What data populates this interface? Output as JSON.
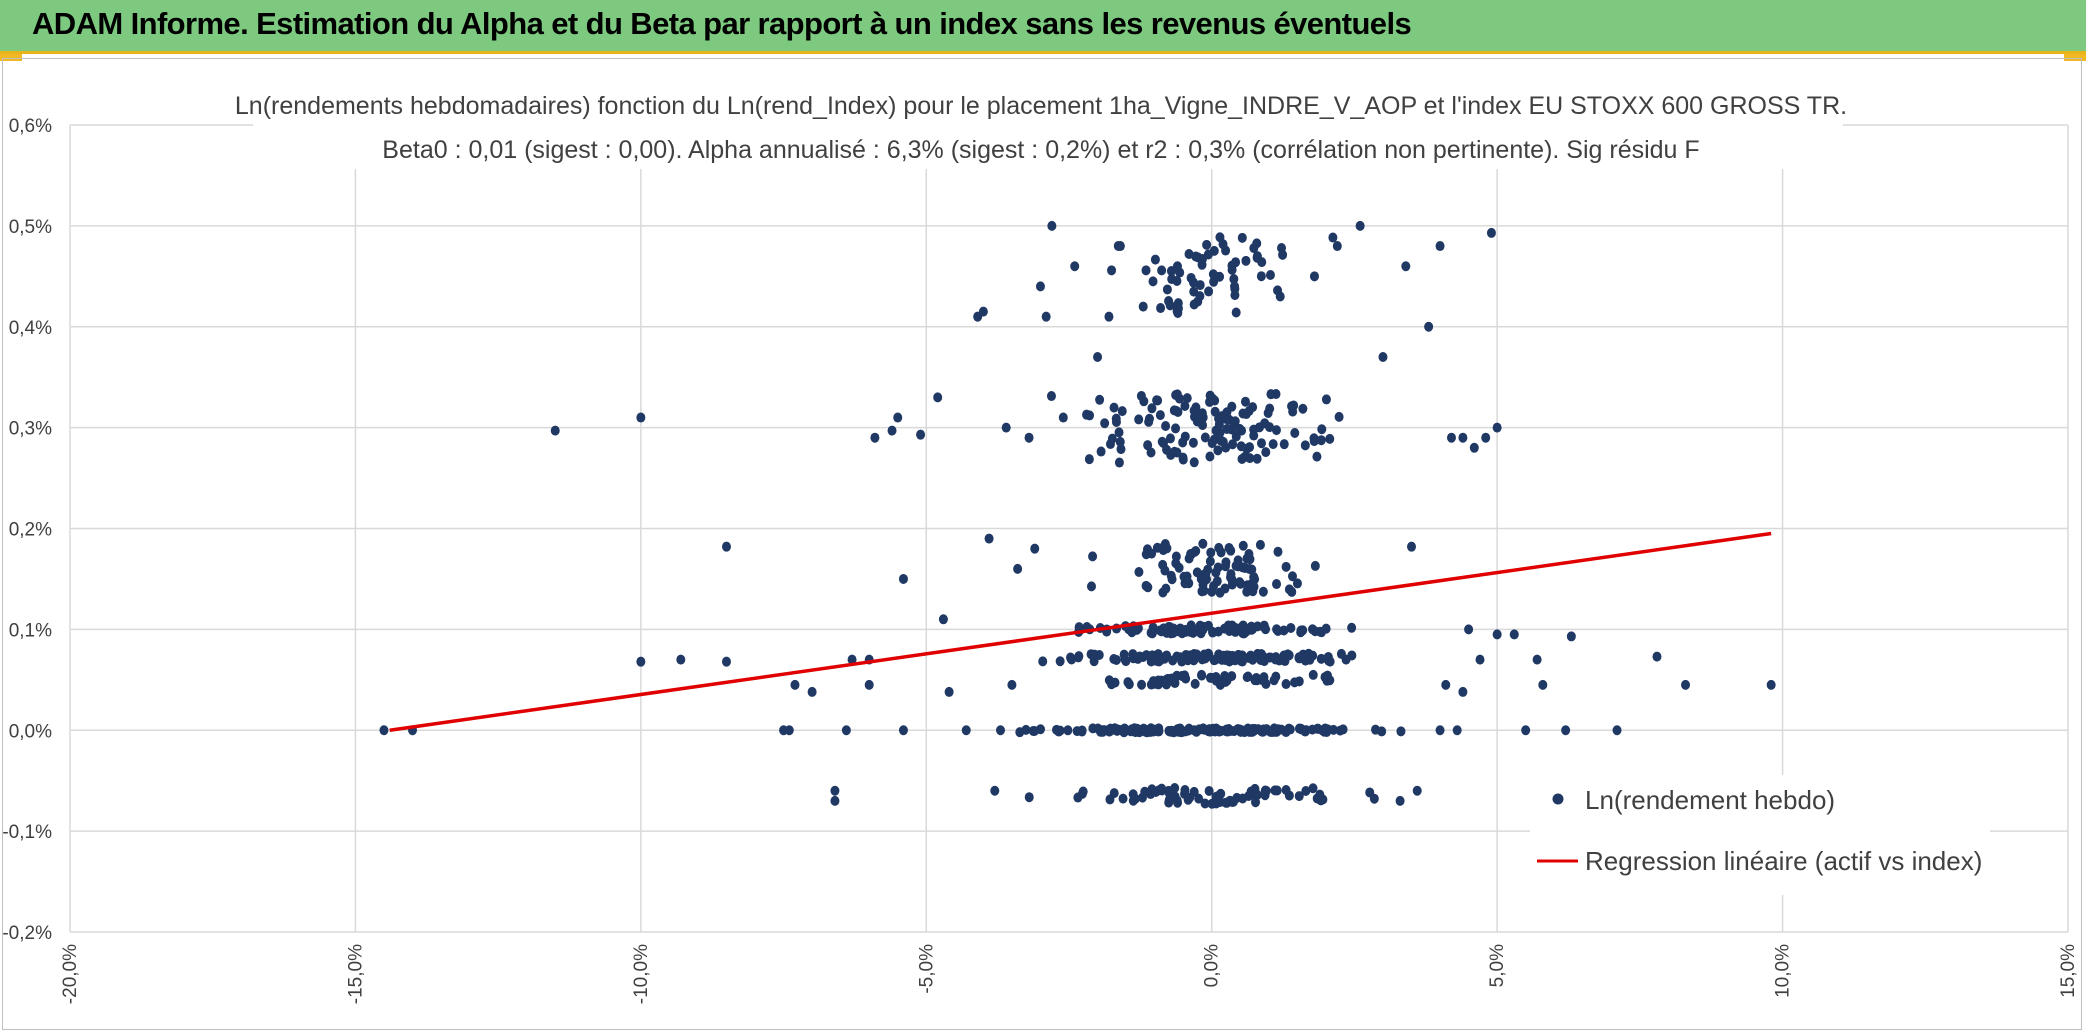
{
  "header": {
    "title": "ADAM Informe. Estimation du Alpha et du Beta par rapport à un index sans les revenus éventuels"
  },
  "colors": {
    "header_bg": "#7dc97f",
    "accent": "#f0b823",
    "points": "#203864",
    "regression": "#e00000",
    "grid": "#d9d9d9"
  },
  "chart_data": {
    "type": "scatter",
    "title_line1": "Ln(rendements hebdomadaires) fonction du Ln(rend_Index) pour le placement 1ha_Vigne_INDRE_V_AOP et l'index EU STOXX 600 GROSS TR.",
    "title_line2": "Beta0 : 0,01 (sigest : 0,00). Alpha annualisé : 6,3% (sigest : 0,2%) et r2 : 0,3% (corrélation non pertinente). Sig résidu F",
    "xlim": [
      -0.2,
      0.15
    ],
    "ylim": [
      -0.002,
      0.006
    ],
    "x_ticks": [
      "-20,0%",
      "-15,0%",
      "-10,0%",
      "-5,0%",
      "0,0%",
      "5,0%",
      "10,0%",
      "15,0%"
    ],
    "y_ticks": [
      "-0,2%",
      "-0,1%",
      "0,0%",
      "0,1%",
      "0,2%",
      "0,3%",
      "0,4%",
      "0,5%",
      "0,6%"
    ],
    "legend_placement": "bottom-right",
    "series": [
      {
        "name": "Ln(rendement hebdo)",
        "kind": "points",
        "color": "#203864",
        "points": [
          [
            -0.145,
            0.0
          ],
          [
            -0.14,
            0.0
          ],
          [
            -0.115,
            0.00297
          ],
          [
            -0.1,
            0.0031
          ],
          [
            -0.1,
            0.00068
          ],
          [
            -0.093,
            0.0007
          ],
          [
            -0.085,
            0.00182
          ],
          [
            -0.085,
            0.00068
          ],
          [
            -0.075,
            0.0
          ],
          [
            -0.074,
            0.0
          ],
          [
            -0.073,
            0.00045
          ],
          [
            -0.07,
            0.00038
          ],
          [
            -0.066,
            -0.0006
          ],
          [
            -0.066,
            -0.0007
          ],
          [
            -0.064,
            0.0
          ],
          [
            -0.063,
            0.0007
          ],
          [
            -0.06,
            0.0007
          ],
          [
            -0.06,
            0.00045
          ],
          [
            -0.059,
            0.0029
          ],
          [
            -0.056,
            0.00297
          ],
          [
            -0.055,
            0.0031
          ],
          [
            -0.054,
            0.0015
          ],
          [
            -0.054,
            0.0
          ],
          [
            -0.051,
            0.00293
          ],
          [
            -0.048,
            0.0033
          ],
          [
            -0.047,
            0.0011
          ],
          [
            -0.046,
            0.00038
          ],
          [
            -0.043,
            0.0
          ],
          [
            -0.041,
            0.0041
          ],
          [
            -0.04,
            0.00415
          ],
          [
            -0.039,
            0.0019
          ],
          [
            -0.038,
            -0.0006
          ],
          [
            -0.037,
            0.0
          ],
          [
            -0.036,
            0.003
          ],
          [
            -0.035,
            0.00045
          ],
          [
            -0.034,
            0.0016
          ],
          [
            -0.032,
            0.0029
          ],
          [
            -0.031,
            0.0018
          ],
          [
            -0.03,
            0.0044
          ],
          [
            -0.029,
            0.0041
          ],
          [
            -0.028,
            0.005
          ],
          [
            -0.026,
            0.0031
          ],
          [
            -0.024,
            0.0046
          ],
          [
            -0.02,
            0.0037
          ],
          [
            -0.018,
            0.0041
          ],
          [
            -0.016,
            0.0048
          ],
          [
            -0.012,
            0.0042
          ],
          [
            -0.006,
            0.0046
          ],
          [
            0.004,
            0.0044
          ],
          [
            0.008,
            0.0047
          ],
          [
            0.012,
            0.0043
          ],
          [
            0.018,
            0.0045
          ],
          [
            0.022,
            0.0048
          ],
          [
            0.026,
            0.005
          ],
          [
            0.03,
            0.0037
          ],
          [
            0.034,
            0.0046
          ],
          [
            0.038,
            0.004
          ],
          [
            0.04,
            0.0048
          ],
          [
            0.042,
            0.0029
          ],
          [
            0.044,
            0.0029
          ],
          [
            0.046,
            0.0028
          ],
          [
            0.048,
            0.0029
          ],
          [
            0.049,
            0.00493
          ],
          [
            0.05,
            0.003
          ],
          [
            0.045,
            0.001
          ],
          [
            0.047,
            0.0007
          ],
          [
            0.05,
            0.00095
          ],
          [
            0.053,
            0.00095
          ],
          [
            0.055,
            0.0
          ],
          [
            0.057,
            0.0007
          ],
          [
            0.058,
            0.00045
          ],
          [
            0.062,
            0.0
          ],
          [
            0.063,
            0.00093
          ],
          [
            0.071,
            0.0
          ],
          [
            0.078,
            0.00073
          ],
          [
            0.083,
            0.00045
          ],
          [
            0.098,
            0.00045
          ],
          [
            0.036,
            -0.0006
          ],
          [
            0.033,
            -0.0007
          ],
          [
            0.04,
            0.0
          ],
          [
            0.043,
            0.0
          ],
          [
            0.041,
            0.00045
          ],
          [
            0.044,
            0.00038
          ],
          [
            0.035,
            0.00182
          ]
        ]
      },
      {
        "name": "Regression linéaire (actif vs index)",
        "kind": "line",
        "color": "#e00000",
        "points": [
          [
            -0.144,
            0.0
          ],
          [
            0.098,
            0.00195
          ]
        ]
      }
    ]
  }
}
